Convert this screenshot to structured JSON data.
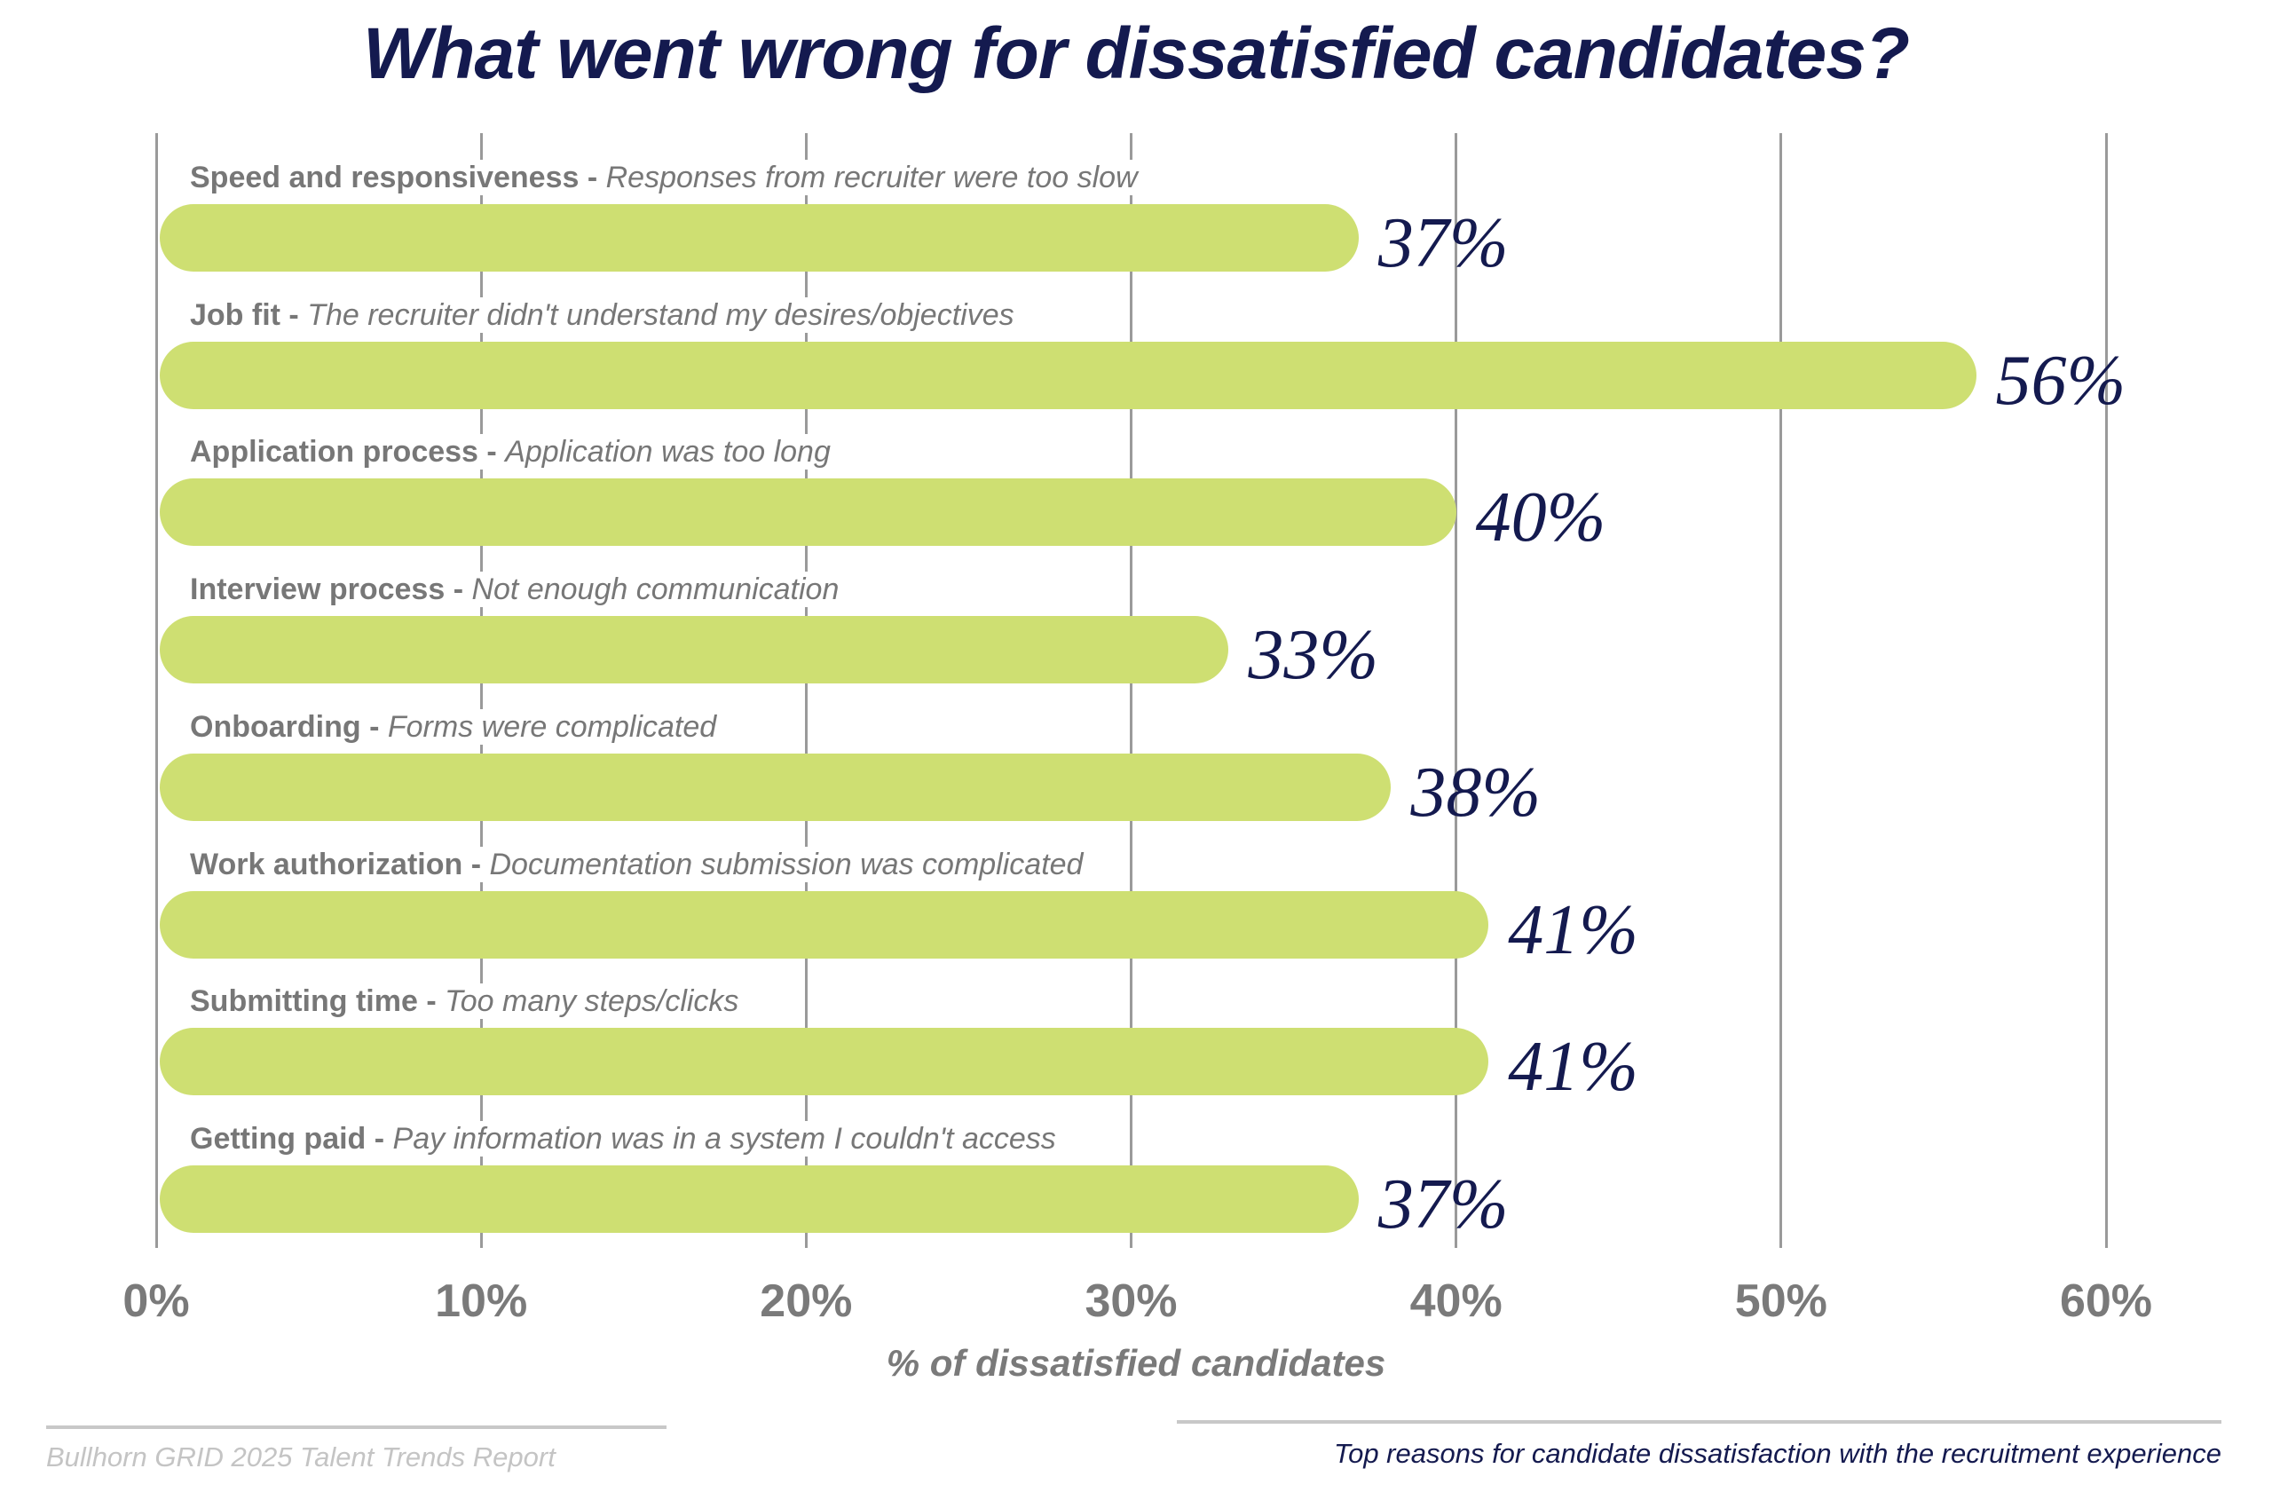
{
  "chart_data": {
    "type": "bar",
    "orientation": "horizontal",
    "title": "What went wrong for dissatisfied candidates?",
    "xlabel": "% of dissatisfied candidates",
    "xlim": [
      0,
      60
    ],
    "xticks": [
      "0%",
      "10%",
      "20%",
      "30%",
      "40%",
      "50%",
      "60%"
    ],
    "grid": true,
    "bar_color": "#cedf72",
    "categories": [
      {
        "category": "Speed and responsiveness",
        "detail": "Responses from recruiter were too slow"
      },
      {
        "category": "Job fit",
        "detail": "The recruiter didn't understand my desires/objectives"
      },
      {
        "category": "Application process",
        "detail": "Application was too long"
      },
      {
        "category": "Interview process",
        "detail": "Not enough communication"
      },
      {
        "category": "Onboarding",
        "detail": "Forms were complicated"
      },
      {
        "category": "Work authorization",
        "detail": "Documentation submission was complicated"
      },
      {
        "category": "Submitting time",
        "detail": "Too many steps/clicks"
      },
      {
        "category": "Getting paid",
        "detail": "Pay information was in a system I couldn't access"
      }
    ],
    "values": [
      37,
      56,
      40,
      33,
      38,
      41,
      41,
      37
    ],
    "data_labels": [
      "37%",
      "56%",
      "40%",
      "33%",
      "38%",
      "41%",
      "41%",
      "37%"
    ]
  },
  "footer": {
    "source": "Bullhorn GRID 2025 Talent Trends Report",
    "caption": "Top reasons for candidate dissatisfaction with the recruitment experience"
  },
  "colors": {
    "title": "#141a4f",
    "bar": "#cedf72",
    "axis_text": "#7a7a7a"
  }
}
